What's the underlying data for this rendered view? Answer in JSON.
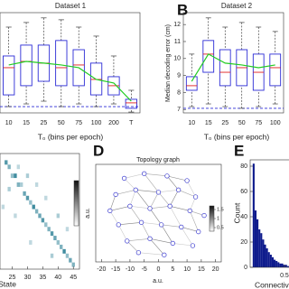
{
  "chart_data": [
    {
      "type": "box",
      "title": "Dataset 1",
      "xlabel": "T₀ (bins per epoch)",
      "categories": [
        "10",
        "15",
        "25",
        "50",
        "75",
        "100",
        "200",
        "T"
      ],
      "boxes": [
        [
          7.17,
          7.86,
          9.46,
          10.15,
          11.85
        ],
        [
          7.33,
          8.4,
          9.83,
          10.79,
          12.12
        ],
        [
          7.49,
          8.66,
          9.73,
          10.79,
          12.39
        ],
        [
          7.17,
          8.4,
          9.46,
          11.06,
          12.28
        ],
        [
          7.33,
          8.4,
          9.62,
          10.52,
          11.85
        ],
        [
          7.17,
          7.86,
          8.77,
          9.73,
          11.32
        ],
        [
          7.33,
          7.86,
          8.4,
          8.93,
          10.15
        ],
        [
          6.85,
          7.07,
          7.39,
          7.6,
          8.13
        ]
      ],
      "means": [
        9.62,
        9.83,
        9.73,
        9.62,
        9.46,
        8.77,
        8.56,
        7.49
      ],
      "baseline": 7.17,
      "ylim": [
        6.8,
        12.7
      ],
      "box_color": "#2b2bd6",
      "median_color": "#e02020",
      "mean_color": "#22cc22"
    },
    {
      "type": "box",
      "panel": "B",
      "title": "Dataset 2",
      "xlabel": "T₀ (bins per epoch)",
      "ylabel": "Median decoding error (cm)",
      "categories": [
        "10",
        "15",
        "25",
        "50",
        "75",
        "100"
      ],
      "boxes": [
        [
          7.17,
          8.13,
          8.4,
          8.93,
          10.26
        ],
        [
          7.33,
          9.19,
          10.26,
          11.06,
          12.39
        ],
        [
          7.17,
          8.4,
          9.19,
          10.52,
          11.85
        ],
        [
          7.07,
          8.4,
          9.46,
          10.52,
          12.12
        ],
        [
          7.17,
          8.13,
          9.19,
          10.26,
          11.85
        ],
        [
          7.33,
          8.4,
          9.46,
          10.26,
          11.59
        ]
      ],
      "means": [
        8.66,
        10.26,
        9.73,
        9.62,
        9.46,
        9.62
      ],
      "baseline": 7.07,
      "ylim": [
        6.8,
        12.7
      ],
      "yticks": [
        7,
        8,
        9,
        10,
        11,
        12
      ],
      "box_color": "#2b2bd6",
      "median_color": "#e02020",
      "mean_color": "#22cc22"
    },
    {
      "type": "heatmap",
      "xlabel": "State",
      "xlim": [
        21,
        47
      ],
      "ylim": [
        21,
        47
      ],
      "xticks": [
        25,
        30,
        35,
        40,
        45
      ],
      "color": "#2a7f95",
      "cells": [
        [
          23,
          23,
          0.8
        ],
        [
          24,
          24,
          0.6
        ],
        [
          25,
          26,
          0.5
        ],
        [
          26,
          26,
          0.9
        ],
        [
          27,
          28,
          0.6
        ],
        [
          28,
          28,
          0.4
        ],
        [
          29,
          30,
          0.7
        ],
        [
          30,
          31,
          0.8
        ],
        [
          31,
          32,
          0.5
        ],
        [
          32,
          33,
          0.9
        ],
        [
          33,
          34,
          0.6
        ],
        [
          34,
          35,
          0.7
        ],
        [
          35,
          36,
          0.8
        ],
        [
          36,
          37,
          0.5
        ],
        [
          37,
          38,
          0.6
        ],
        [
          38,
          39,
          0.8
        ],
        [
          39,
          40,
          0.7
        ],
        [
          40,
          41,
          0.5
        ],
        [
          41,
          42,
          0.6
        ],
        [
          42,
          43,
          0.9
        ],
        [
          43,
          44,
          0.5
        ],
        [
          44,
          45,
          0.7
        ],
        [
          45,
          46,
          0.6
        ],
        [
          24,
          29,
          0.4
        ],
        [
          27,
          24,
          0.3
        ],
        [
          30,
          26,
          0.4
        ],
        [
          33,
          28,
          0.3
        ],
        [
          36,
          31,
          0.3
        ],
        [
          26,
          35,
          0.3
        ],
        [
          40,
          35,
          0.4
        ],
        [
          43,
          38,
          0.3
        ],
        [
          31,
          41,
          0.3
        ],
        [
          38,
          44,
          0.4
        ],
        [
          22,
          33,
          0.3
        ]
      ]
    },
    {
      "type": "network",
      "panel": "D",
      "title": "Topology graph",
      "xlabel": "a.u.",
      "ylabel": "a.u.",
      "xlim": [
        -22,
        22
      ],
      "ylim": [
        -22,
        20
      ],
      "xticks": [
        -20,
        -15,
        -10,
        -5,
        0,
        5,
        10,
        15,
        20
      ],
      "colorbar_ticks": [
        0.5,
        1,
        1.5
      ],
      "colorbar_lim": [
        0.3,
        1.7
      ],
      "node_color": "#3a3ad0",
      "x": [
        -12,
        -5,
        3,
        10,
        -15,
        -8,
        0,
        7,
        13,
        -17,
        -10,
        -3,
        4,
        11,
        16,
        -14,
        -6,
        1,
        8,
        14,
        -11,
        -3,
        5,
        12,
        -7,
        2
      ],
      "y": [
        14,
        16,
        15,
        13,
        7,
        9,
        8,
        9,
        6,
        0,
        2,
        1,
        2,
        0,
        -2,
        -6,
        -5,
        -6,
        -7,
        -9,
        -13,
        -12,
        -14,
        -15,
        -18,
        -19
      ],
      "edges": [
        [
          0,
          1
        ],
        [
          1,
          2
        ],
        [
          2,
          3
        ],
        [
          0,
          5
        ],
        [
          1,
          6
        ],
        [
          2,
          7
        ],
        [
          3,
          8
        ],
        [
          4,
          5
        ],
        [
          5,
          6
        ],
        [
          6,
          7
        ],
        [
          7,
          8
        ],
        [
          4,
          9
        ],
        [
          5,
          10
        ],
        [
          6,
          11
        ],
        [
          7,
          12
        ],
        [
          8,
          13
        ],
        [
          13,
          14
        ],
        [
          9,
          10
        ],
        [
          10,
          11
        ],
        [
          11,
          12
        ],
        [
          12,
          13
        ],
        [
          9,
          15
        ],
        [
          10,
          16
        ],
        [
          11,
          17
        ],
        [
          12,
          18
        ],
        [
          13,
          19
        ],
        [
          15,
          16
        ],
        [
          16,
          17
        ],
        [
          17,
          18
        ],
        [
          18,
          19
        ],
        [
          15,
          20
        ],
        [
          16,
          21
        ],
        [
          17,
          22
        ],
        [
          18,
          23
        ],
        [
          20,
          21
        ],
        [
          21,
          22
        ],
        [
          22,
          23
        ],
        [
          20,
          24
        ],
        [
          21,
          25
        ],
        [
          24,
          25
        ],
        [
          6,
          12
        ],
        [
          5,
          11
        ]
      ]
    },
    {
      "type": "histogram",
      "panel": "E",
      "xlabel": "Connectivity",
      "ylabel": "Count",
      "color": "#0d1a8c",
      "bins": [
        0,
        0.03,
        0.06,
        0.09,
        0.12,
        0.15,
        0.18,
        0.21,
        0.24,
        0.27,
        0.3,
        0.33,
        0.36,
        0.39,
        0.42,
        0.45,
        0.48,
        0.51,
        0.54,
        0.57,
        0.6,
        0.63
      ],
      "counts": [
        82,
        45,
        38,
        30,
        27,
        22,
        18,
        15,
        12,
        10,
        8,
        6,
        5,
        4,
        3,
        3,
        2,
        2,
        1,
        1,
        1
      ],
      "xlim": [
        -0.04,
        0.6
      ],
      "ylim": [
        0,
        85
      ],
      "xticks": [
        0.5
      ],
      "yticks": [
        0,
        20,
        40,
        60,
        80
      ]
    }
  ]
}
